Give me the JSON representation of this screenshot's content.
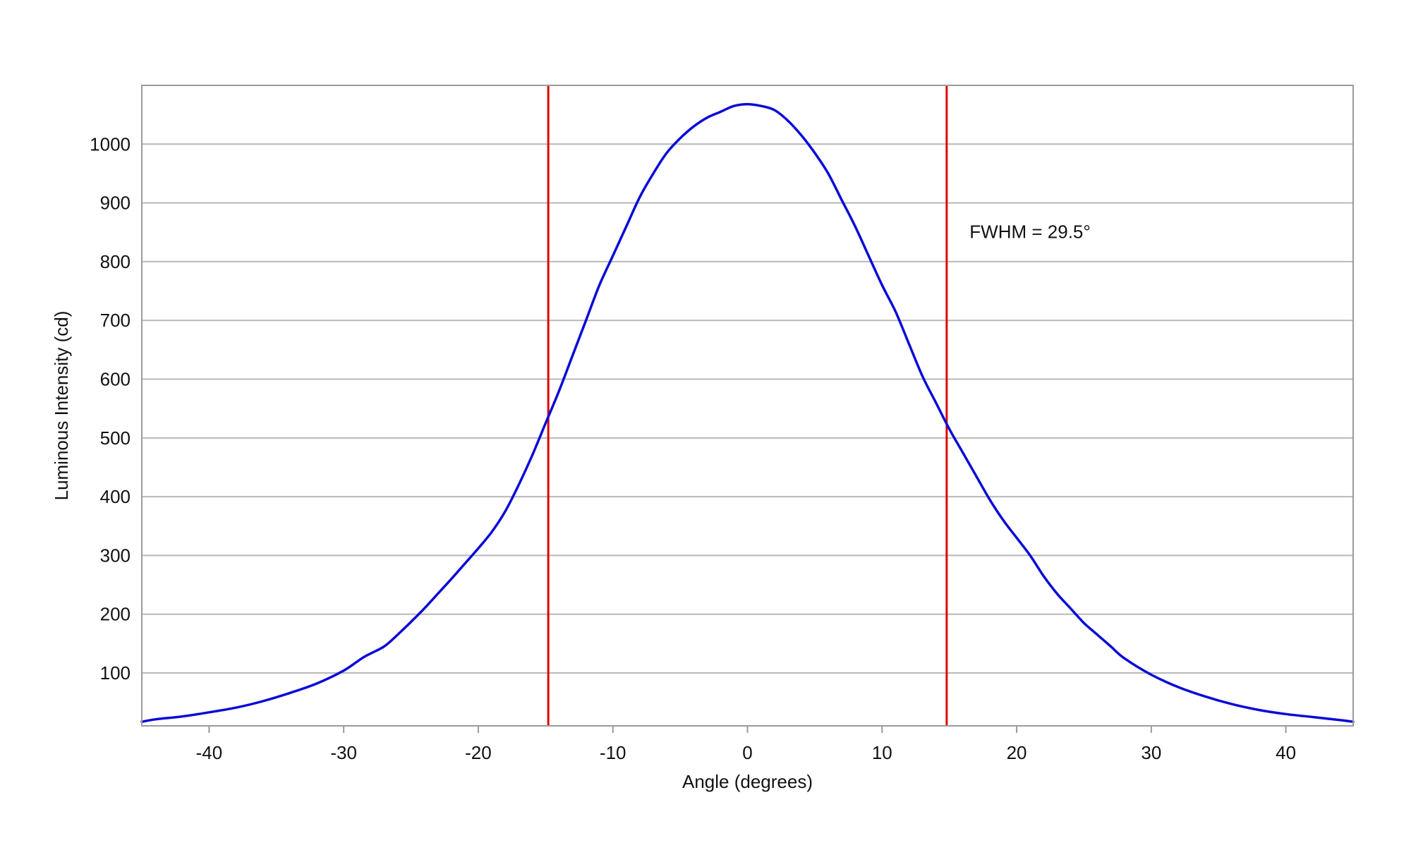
{
  "chart_data": {
    "type": "line",
    "title": "",
    "xlabel": "Angle (degrees)",
    "ylabel": "Luminous Intensity (cd)",
    "xlim": [
      -45,
      45
    ],
    "ylim": [
      10,
      1100
    ],
    "xticks": [
      -40,
      -30,
      -20,
      -10,
      0,
      10,
      20,
      30,
      40
    ],
    "yticks": [
      100,
      200,
      300,
      400,
      500,
      600,
      700,
      800,
      900,
      1000
    ],
    "grid": "horizontal",
    "annotation": {
      "text": "FWHM = 29.5°",
      "x": 16.5,
      "y": 840
    },
    "vlines": [
      {
        "x": -14.8,
        "color": "#e00000"
      },
      {
        "x": 14.8,
        "color": "#e00000"
      }
    ],
    "series": [
      {
        "color": "#0a0ad8",
        "points": [
          [
            -45,
            17
          ],
          [
            -44,
            21
          ],
          [
            -42,
            26
          ],
          [
            -40,
            33
          ],
          [
            -38,
            41
          ],
          [
            -36,
            52
          ],
          [
            -34,
            66
          ],
          [
            -32,
            82
          ],
          [
            -30,
            104
          ],
          [
            -28.5,
            127
          ],
          [
            -27,
            145
          ],
          [
            -26,
            165
          ],
          [
            -25,
            187
          ],
          [
            -24,
            210
          ],
          [
            -23,
            235
          ],
          [
            -22,
            260
          ],
          [
            -21,
            286
          ],
          [
            -20,
            312
          ],
          [
            -19,
            340
          ],
          [
            -18,
            375
          ],
          [
            -17,
            420
          ],
          [
            -16,
            470
          ],
          [
            -15,
            525
          ],
          [
            -14,
            580
          ],
          [
            -13,
            640
          ],
          [
            -12,
            700
          ],
          [
            -11,
            760
          ],
          [
            -10,
            810
          ],
          [
            -9,
            860
          ],
          [
            -8,
            910
          ],
          [
            -7,
            950
          ],
          [
            -6,
            985
          ],
          [
            -5,
            1010
          ],
          [
            -4,
            1030
          ],
          [
            -3,
            1045
          ],
          [
            -2,
            1055
          ],
          [
            -1,
            1065
          ],
          [
            0,
            1068
          ],
          [
            1,
            1065
          ],
          [
            2,
            1058
          ],
          [
            3,
            1040
          ],
          [
            4,
            1015
          ],
          [
            5,
            985
          ],
          [
            6,
            950
          ],
          [
            7,
            905
          ],
          [
            8,
            860
          ],
          [
            9,
            810
          ],
          [
            10,
            760
          ],
          [
            11,
            715
          ],
          [
            12,
            660
          ],
          [
            13,
            605
          ],
          [
            14,
            560
          ],
          [
            15,
            515
          ],
          [
            16,
            475
          ],
          [
            17,
            435
          ],
          [
            18,
            395
          ],
          [
            19,
            360
          ],
          [
            20,
            330
          ],
          [
            21,
            300
          ],
          [
            22,
            265
          ],
          [
            23,
            235
          ],
          [
            24,
            210
          ],
          [
            25,
            185
          ],
          [
            26,
            165
          ],
          [
            27,
            145
          ],
          [
            28,
            125
          ],
          [
            30,
            97
          ],
          [
            32,
            76
          ],
          [
            34,
            60
          ],
          [
            36,
            47
          ],
          [
            38,
            37
          ],
          [
            40,
            30
          ],
          [
            42,
            25
          ],
          [
            44,
            20
          ],
          [
            45,
            17
          ]
        ]
      }
    ]
  }
}
